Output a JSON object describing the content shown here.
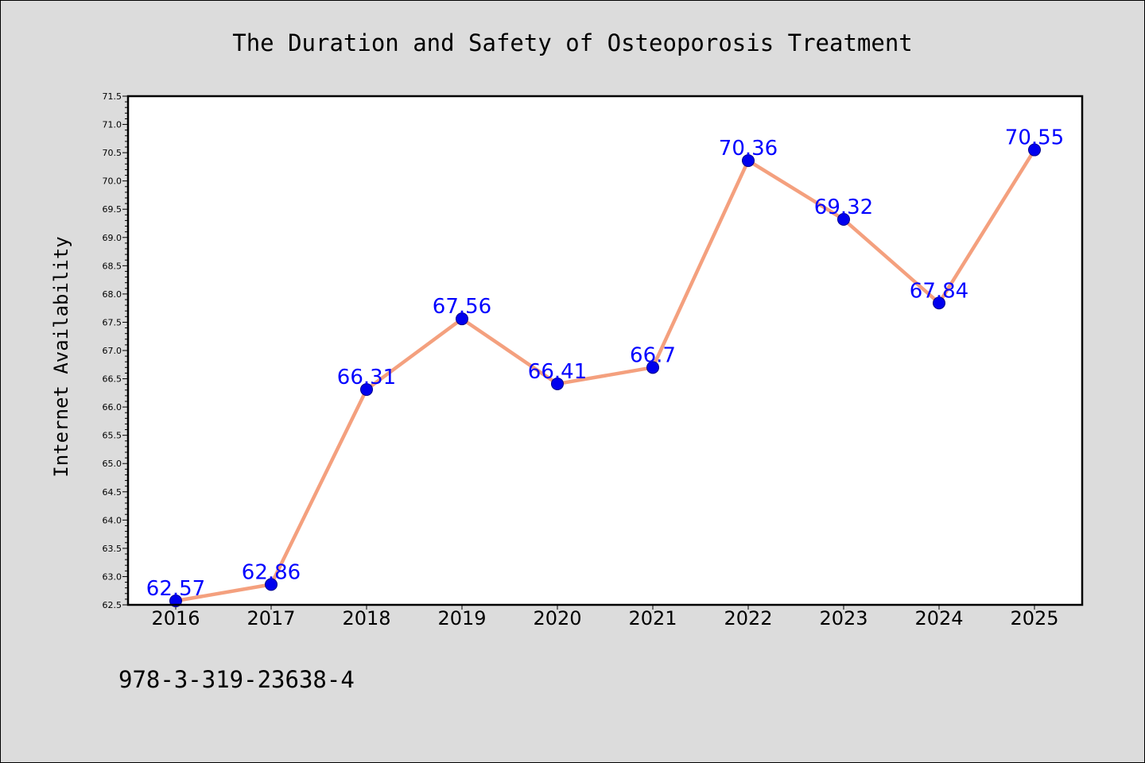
{
  "footer_code": "978-3-319-23638-4",
  "colors": {
    "background": "#dcdcdc",
    "plot_background": "#ffffff",
    "line": "#f4a07e",
    "marker_fill": "#0000ee",
    "marker_edge": "#00008b",
    "data_label": "#0000ff"
  },
  "chart_data": {
    "type": "line",
    "title": "The Duration and Safety of Osteoporosis Treatment",
    "xlabel": "",
    "ylabel": "Internet Availability",
    "categories": [
      "2016",
      "2017",
      "2018",
      "2019",
      "2020",
      "2021",
      "2022",
      "2023",
      "2024",
      "2025"
    ],
    "series": [
      {
        "values": [
          62.57,
          62.86,
          66.31,
          67.56,
          66.41,
          66.7,
          70.36,
          69.32,
          67.84,
          70.55
        ],
        "labels": [
          "62.57",
          "62.86",
          "66.31",
          "67.56",
          "66.41",
          "66.7",
          "70.36",
          "69.32",
          "67.84",
          "70.55"
        ]
      }
    ],
    "ylim": [
      62.5,
      71.5
    ],
    "yticks": [
      "62.5",
      "63.0",
      "63.5",
      "64.0",
      "64.5",
      "65.0",
      "65.5",
      "66.0",
      "66.5",
      "67.0",
      "67.5",
      "68.0",
      "68.5",
      "69.0",
      "69.5",
      "70.0",
      "70.5",
      "71.0",
      "71.5"
    ],
    "grid": false,
    "legend": "none",
    "marker": "circle"
  }
}
